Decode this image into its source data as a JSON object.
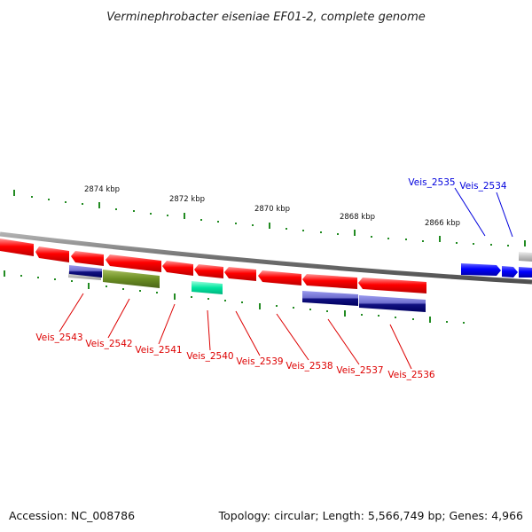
{
  "header": {
    "title": "Verminephrobacter eiseniae EF01-2, complete genome"
  },
  "footer": {
    "accession": "Accession: NC_008786",
    "summary": "Topology: circular; Length: 5,566,749 bp; Genes: 4,966"
  },
  "scale_labels": [
    "2874 kbp",
    "2872 kbp",
    "2870 kbp",
    "2868 kbp",
    "2866 kbp"
  ],
  "genes_below": [
    "Veis_2543",
    "Veis_2542",
    "Veis_2541",
    "Veis_2540",
    "Veis_2539",
    "Veis_2538",
    "Veis_2537",
    "Veis_2536"
  ],
  "genes_above": [
    "Veis_2535",
    "Veis_2534"
  ],
  "colors": {
    "red_feature": "#ff0000",
    "blue_feature": "#0000ff",
    "olive_feature": "#6b8e23",
    "cyan_feature": "#00e5a0",
    "navy_feature": "#000080",
    "lavender_feature": "#8080e0",
    "gray_feature": "#c0c0c0",
    "backbone": "#808080",
    "tick": "#228b22",
    "label_red": "#dd0000",
    "label_blue": "#0000dd"
  }
}
